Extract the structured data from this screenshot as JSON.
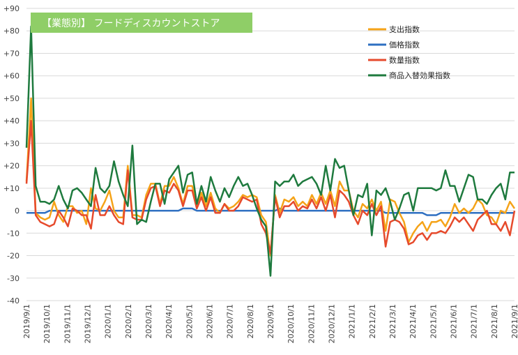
{
  "chart_data": {
    "type": "line",
    "title": "【業態別】 フードディスカウントストア",
    "title_bg": "#8fce67",
    "ylim": [
      -40,
      90
    ],
    "yticks": [
      -40,
      -30,
      -20,
      -10,
      0,
      10,
      20,
      30,
      40,
      50,
      60,
      70,
      80,
      90
    ],
    "ytick_labels": [
      "-40",
      "-30",
      "-20",
      "-10",
      "0",
      "+10",
      "+20",
      "+30",
      "+40",
      "+50",
      "+60",
      "+70",
      "+80",
      "+90"
    ],
    "grid": true,
    "legend_position": "top-right",
    "x_tick_labels": [
      "2019/9/1",
      "2019/10/1",
      "2019/11/1",
      "2019/12/1",
      "2020/1/1",
      "2020/2/1",
      "2020/3/1",
      "2020/4/1",
      "2020/5/1",
      "2020/6/1",
      "2020/7/1",
      "2020/8/1",
      "2020/9/1",
      "2020/10/1",
      "2020/11/1",
      "2020/12/1",
      "2021/1/1",
      "2021/2/1",
      "2021/3/1",
      "2021/4/1",
      "2021/5/1",
      "2021/6/1",
      "2021/7/1",
      "2021/8/1",
      "2021/9/1"
    ],
    "series": [
      {
        "name": "支出指数",
        "color": "#f5a318",
        "values": [
          13,
          50,
          -1,
          -3,
          -4,
          -3,
          4,
          -2,
          -5,
          2,
          2,
          -1,
          0,
          -6,
          10,
          1,
          0,
          4,
          9,
          0,
          -3,
          -3,
          20,
          -2,
          -2,
          -3,
          7,
          12,
          12,
          3,
          11,
          11,
          15,
          10,
          3,
          11,
          11,
          2,
          8,
          2,
          8,
          1,
          -1,
          3,
          1,
          2,
          4,
          7,
          6,
          7,
          6,
          -2,
          -5,
          -20,
          7,
          -1,
          5,
          4,
          6,
          2,
          4,
          2,
          7,
          3,
          8,
          3,
          9,
          2,
          13,
          9,
          9,
          0,
          -3,
          3,
          1,
          5,
          0,
          4,
          -9,
          5,
          4,
          -1,
          -5,
          -14,
          -10,
          -7,
          -5,
          -9,
          -5,
          -5,
          -4,
          -7,
          -3,
          3,
          -1,
          1,
          -1,
          1,
          5,
          3,
          -2,
          -3,
          -6,
          0,
          -1,
          4,
          1
        ]
      },
      {
        "name": "価格指数",
        "color": "#2e6fc1",
        "values": [
          -1,
          -1,
          -1,
          -1,
          -1,
          0,
          0,
          0,
          0,
          0,
          0,
          0,
          0,
          0,
          0,
          0,
          0,
          0,
          0,
          0,
          0,
          0,
          0,
          0,
          0,
          0,
          0,
          0,
          0,
          0,
          0,
          0,
          0,
          0,
          1,
          1,
          1,
          0,
          0,
          0,
          0,
          0,
          0,
          0,
          0,
          0,
          0,
          0,
          0,
          0,
          0,
          0,
          0,
          0,
          0,
          1,
          0,
          0,
          0,
          0,
          0,
          0,
          0,
          0,
          0,
          0,
          0,
          0,
          0,
          0,
          0,
          0,
          0,
          0,
          0,
          0,
          0,
          0,
          -1,
          -1,
          -1,
          -1,
          -1,
          -1,
          -1,
          -1,
          -1,
          -2,
          -2,
          -2,
          -1,
          -1,
          -1,
          -1,
          -1,
          -1,
          -1,
          -1,
          -1,
          -1,
          -1,
          -1,
          -1,
          -1,
          -1,
          -1,
          -1
        ]
      },
      {
        "name": "数量指数",
        "color": "#e64a2c",
        "values": [
          12,
          40,
          -2,
          -5,
          -6,
          -7,
          -6,
          0,
          -3,
          -7,
          1,
          0,
          -2,
          -2,
          -8,
          7,
          -2,
          -2,
          2,
          -2,
          -5,
          -6,
          18,
          -3,
          -4,
          -4,
          5,
          10,
          11,
          2,
          9,
          8,
          12,
          9,
          2,
          9,
          9,
          1,
          6,
          0,
          6,
          -1,
          -1,
          3,
          0,
          0,
          2,
          6,
          5,
          4,
          5,
          -6,
          -10,
          -19,
          6,
          -3,
          2,
          2,
          4,
          0,
          2,
          1,
          5,
          1,
          6,
          0,
          7,
          -3,
          9,
          7,
          4,
          -2,
          -6,
          0,
          -2,
          3,
          -2,
          2,
          -16,
          -5,
          -4,
          -5,
          -8,
          -15,
          -14,
          -11,
          -10,
          -13,
          -10,
          -10,
          -9,
          -10,
          -7,
          -3,
          -5,
          -3,
          -6,
          -9,
          -4,
          -2,
          0,
          -6,
          -6,
          -9,
          -5,
          -11,
          0
        ]
      },
      {
        "name": "商品入替効果指数",
        "color": "#1e7a3e",
        "values": [
          28,
          82,
          11,
          4,
          4,
          3,
          5,
          11,
          5,
          1,
          9,
          10,
          8,
          5,
          2,
          19,
          10,
          8,
          11,
          22,
          13,
          7,
          2,
          29,
          -6,
          -4,
          -5,
          4,
          12,
          12,
          3,
          14,
          17,
          20,
          8,
          16,
          17,
          3,
          11,
          4,
          15,
          9,
          4,
          10,
          6,
          11,
          15,
          11,
          12,
          7,
          1,
          -4,
          -7,
          -29,
          13,
          11,
          13,
          13,
          16,
          11,
          13,
          14,
          15,
          12,
          7,
          20,
          9,
          23,
          19,
          20,
          9,
          -2,
          7,
          6,
          12,
          -11,
          9,
          7,
          10,
          4,
          -4,
          1,
          7,
          8,
          0,
          10,
          10,
          10,
          10,
          9,
          10,
          18,
          11,
          11,
          4,
          10,
          16,
          15,
          5,
          5,
          3,
          7,
          10,
          12,
          5,
          17,
          17
        ]
      }
    ]
  }
}
